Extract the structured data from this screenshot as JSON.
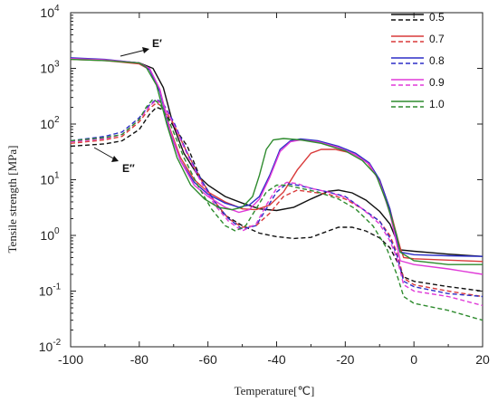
{
  "chart_data": {
    "type": "line",
    "xlabel": "Temperature[℃]",
    "ylabel": "Tensile strength [MPa]",
    "xlim": [
      -100,
      20
    ],
    "ylim": [
      0.01,
      10000
    ],
    "yscale": "log",
    "xticks": [
      "-100",
      "-80",
      "-60",
      "-40",
      "-20",
      "0",
      "20"
    ],
    "yticks": [
      {
        "base": "10",
        "exp": "-2"
      },
      {
        "base": "10",
        "exp": "-1"
      },
      {
        "base": "10",
        "exp": "0"
      },
      {
        "base": "10",
        "exp": "1"
      },
      {
        "base": "10",
        "exp": "2"
      },
      {
        "base": "10",
        "exp": "3"
      },
      {
        "base": "10",
        "exp": "4"
      }
    ],
    "legend_position": "top-right",
    "annotations": {
      "storage": "E′",
      "loss": "E″"
    },
    "series": [
      {
        "name": "0.5",
        "color": "#111111",
        "storage": [
          [
            -100,
            1500
          ],
          [
            -90,
            1400
          ],
          [
            -80,
            1250
          ],
          [
            -76,
            1000
          ],
          [
            -73,
            450
          ],
          [
            -70,
            90
          ],
          [
            -67,
            30
          ],
          [
            -63,
            12
          ],
          [
            -60,
            8
          ],
          [
            -55,
            5
          ],
          [
            -50,
            3.8
          ],
          [
            -45,
            3
          ],
          [
            -40,
            2.8
          ],
          [
            -35,
            3.2
          ],
          [
            -30,
            4.5
          ],
          [
            -25,
            6.2
          ],
          [
            -22,
            6.5
          ],
          [
            -18,
            5.8
          ],
          [
            -14,
            4.3
          ],
          [
            -10,
            2.7
          ],
          [
            -7,
            1.6
          ],
          [
            -5,
            0.8
          ],
          [
            -4,
            0.55
          ],
          [
            0,
            0.52
          ],
          [
            10,
            0.46
          ],
          [
            20,
            0.42
          ]
        ],
        "loss": [
          [
            -100,
            40
          ],
          [
            -90,
            44
          ],
          [
            -85,
            50
          ],
          [
            -80,
            80
          ],
          [
            -77,
            150
          ],
          [
            -75,
            200
          ],
          [
            -73,
            180
          ],
          [
            -70,
            90
          ],
          [
            -66,
            40
          ],
          [
            -62,
            10
          ],
          [
            -58,
            4
          ],
          [
            -55,
            2.3
          ],
          [
            -50,
            1.5
          ],
          [
            -45,
            1.1
          ],
          [
            -40,
            0.95
          ],
          [
            -35,
            0.88
          ],
          [
            -30,
            0.92
          ],
          [
            -25,
            1.2
          ],
          [
            -22,
            1.4
          ],
          [
            -18,
            1.4
          ],
          [
            -14,
            1.2
          ],
          [
            -10,
            0.9
          ],
          [
            -7,
            0.6
          ],
          [
            -5,
            0.35
          ],
          [
            -3,
            0.18
          ],
          [
            0,
            0.15
          ],
          [
            10,
            0.12
          ],
          [
            20,
            0.1
          ]
        ]
      },
      {
        "name": "0.7",
        "color": "#d93a3a",
        "storage": [
          [
            -100,
            1450
          ],
          [
            -90,
            1380
          ],
          [
            -80,
            1200
          ],
          [
            -77,
            950
          ],
          [
            -74,
            400
          ],
          [
            -71,
            80
          ],
          [
            -68,
            25
          ],
          [
            -64,
            10
          ],
          [
            -60,
            6
          ],
          [
            -55,
            4
          ],
          [
            -50,
            3
          ],
          [
            -46,
            2.9
          ],
          [
            -42,
            3.5
          ],
          [
            -38,
            6
          ],
          [
            -34,
            15
          ],
          [
            -30,
            30
          ],
          [
            -27,
            35
          ],
          [
            -23,
            35
          ],
          [
            -18,
            30
          ],
          [
            -14,
            22
          ],
          [
            -10,
            10
          ],
          [
            -7,
            3
          ],
          [
            -5,
            1
          ],
          [
            -4,
            0.6
          ],
          [
            -3,
            0.4
          ],
          [
            0,
            0.38
          ],
          [
            10,
            0.36
          ],
          [
            20,
            0.34
          ]
        ],
        "loss": [
          [
            -100,
            45
          ],
          [
            -90,
            52
          ],
          [
            -85,
            60
          ],
          [
            -80,
            110
          ],
          [
            -77,
            190
          ],
          [
            -75,
            240
          ],
          [
            -73,
            200
          ],
          [
            -70,
            100
          ],
          [
            -66,
            30
          ],
          [
            -62,
            10
          ],
          [
            -58,
            4
          ],
          [
            -54,
            2
          ],
          [
            -50,
            1.4
          ],
          [
            -46,
            1.5
          ],
          [
            -42,
            2.5
          ],
          [
            -38,
            5
          ],
          [
            -34,
            6.5
          ],
          [
            -30,
            6
          ],
          [
            -25,
            5.5
          ],
          [
            -20,
            4.5
          ],
          [
            -15,
            3
          ],
          [
            -10,
            1.8
          ],
          [
            -7,
            1
          ],
          [
            -5,
            0.5
          ],
          [
            -3,
            0.17
          ],
          [
            0,
            0.13
          ],
          [
            10,
            0.1
          ],
          [
            20,
            0.08
          ]
        ]
      },
      {
        "name": "0.8",
        "color": "#2d2fc7",
        "storage": [
          [
            -100,
            1550
          ],
          [
            -90,
            1450
          ],
          [
            -80,
            1250
          ],
          [
            -77,
            950
          ],
          [
            -74,
            380
          ],
          [
            -71,
            70
          ],
          [
            -68,
            22
          ],
          [
            -64,
            9
          ],
          [
            -60,
            5.5
          ],
          [
            -55,
            3.8
          ],
          [
            -51,
            3.2
          ],
          [
            -48,
            3.5
          ],
          [
            -45,
            5
          ],
          [
            -42,
            12
          ],
          [
            -39,
            35
          ],
          [
            -36,
            50
          ],
          [
            -33,
            54
          ],
          [
            -28,
            50
          ],
          [
            -22,
            40
          ],
          [
            -17,
            30
          ],
          [
            -13,
            20
          ],
          [
            -10,
            10
          ],
          [
            -7,
            3
          ],
          [
            -5,
            0.8
          ],
          [
            -4,
            0.5
          ],
          [
            0,
            0.45
          ],
          [
            10,
            0.43
          ],
          [
            20,
            0.42
          ]
        ],
        "loss": [
          [
            -100,
            50
          ],
          [
            -90,
            60
          ],
          [
            -85,
            72
          ],
          [
            -80,
            130
          ],
          [
            -77,
            220
          ],
          [
            -75,
            280
          ],
          [
            -73,
            230
          ],
          [
            -70,
            110
          ],
          [
            -66,
            30
          ],
          [
            -62,
            10
          ],
          [
            -58,
            4
          ],
          [
            -54,
            2
          ],
          [
            -50,
            1.3
          ],
          [
            -46,
            1.5
          ],
          [
            -43,
            3
          ],
          [
            -40,
            6
          ],
          [
            -37,
            8.5
          ],
          [
            -34,
            8
          ],
          [
            -30,
            7
          ],
          [
            -25,
            6
          ],
          [
            -20,
            5
          ],
          [
            -15,
            3
          ],
          [
            -10,
            1.8
          ],
          [
            -7,
            0.9
          ],
          [
            -5,
            0.45
          ],
          [
            -3,
            0.15
          ],
          [
            0,
            0.12
          ],
          [
            10,
            0.09
          ],
          [
            20,
            0.08
          ]
        ]
      },
      {
        "name": "0.9",
        "color": "#e03ad8",
        "storage": [
          [
            -100,
            1500
          ],
          [
            -90,
            1420
          ],
          [
            -80,
            1250
          ],
          [
            -77,
            1000
          ],
          [
            -74,
            420
          ],
          [
            -71,
            75
          ],
          [
            -68,
            22
          ],
          [
            -64,
            8
          ],
          [
            -60,
            5
          ],
          [
            -55,
            3.2
          ],
          [
            -51,
            2.6
          ],
          [
            -48,
            2.9
          ],
          [
            -45,
            4.5
          ],
          [
            -42,
            11
          ],
          [
            -39,
            32
          ],
          [
            -36,
            48
          ],
          [
            -33,
            52
          ],
          [
            -28,
            48
          ],
          [
            -22,
            38
          ],
          [
            -17,
            28
          ],
          [
            -13,
            19
          ],
          [
            -10,
            9
          ],
          [
            -7,
            2.5
          ],
          [
            -5,
            0.7
          ],
          [
            -4,
            0.35
          ],
          [
            0,
            0.3
          ],
          [
            10,
            0.25
          ],
          [
            20,
            0.2
          ]
        ],
        "loss": [
          [
            -100,
            48
          ],
          [
            -90,
            55
          ],
          [
            -85,
            65
          ],
          [
            -80,
            120
          ],
          [
            -77,
            210
          ],
          [
            -75,
            270
          ],
          [
            -73,
            220
          ],
          [
            -70,
            100
          ],
          [
            -66,
            28
          ],
          [
            -62,
            9
          ],
          [
            -58,
            3.5
          ],
          [
            -54,
            1.8
          ],
          [
            -50,
            1.2
          ],
          [
            -46,
            1.6
          ],
          [
            -43,
            3.5
          ],
          [
            -40,
            7
          ],
          [
            -37,
            9
          ],
          [
            -34,
            8.5
          ],
          [
            -30,
            7
          ],
          [
            -25,
            6
          ],
          [
            -20,
            4.8
          ],
          [
            -15,
            3
          ],
          [
            -10,
            1.6
          ],
          [
            -7,
            0.8
          ],
          [
            -5,
            0.4
          ],
          [
            -3,
            0.13
          ],
          [
            0,
            0.1
          ],
          [
            10,
            0.08
          ],
          [
            20,
            0.055
          ]
        ]
      },
      {
        "name": "1.0",
        "color": "#2e8b2e",
        "storage": [
          [
            -100,
            1450
          ],
          [
            -90,
            1380
          ],
          [
            -80,
            1250
          ],
          [
            -78,
            1050
          ],
          [
            -75,
            500
          ],
          [
            -72,
            100
          ],
          [
            -69,
            25
          ],
          [
            -65,
            8
          ],
          [
            -61,
            4.5
          ],
          [
            -57,
            3.2
          ],
          [
            -53,
            2.9
          ],
          [
            -50,
            3.2
          ],
          [
            -47,
            5
          ],
          [
            -45,
            12
          ],
          [
            -43,
            35
          ],
          [
            -41,
            52
          ],
          [
            -38,
            55
          ],
          [
            -33,
            52
          ],
          [
            -27,
            45
          ],
          [
            -20,
            33
          ],
          [
            -15,
            22
          ],
          [
            -11,
            12
          ],
          [
            -8,
            4
          ],
          [
            -5,
            1
          ],
          [
            -4,
            0.5
          ],
          [
            0,
            0.35
          ],
          [
            10,
            0.3
          ],
          [
            20,
            0.3
          ]
        ],
        "loss": [
          [
            -100,
            50
          ],
          [
            -90,
            57
          ],
          [
            -85,
            65
          ],
          [
            -80,
            120
          ],
          [
            -78,
            200
          ],
          [
            -76,
            280
          ],
          [
            -74,
            230
          ],
          [
            -71,
            100
          ],
          [
            -67,
            25
          ],
          [
            -63,
            8
          ],
          [
            -59,
            3
          ],
          [
            -55,
            1.5
          ],
          [
            -52,
            1.2
          ],
          [
            -49,
            1.5
          ],
          [
            -46,
            3
          ],
          [
            -43,
            6
          ],
          [
            -40,
            8
          ],
          [
            -37,
            8
          ],
          [
            -33,
            7
          ],
          [
            -28,
            6
          ],
          [
            -22,
            4.5
          ],
          [
            -17,
            3
          ],
          [
            -12,
            1.5
          ],
          [
            -8,
            0.6
          ],
          [
            -5,
            0.2
          ],
          [
            -3,
            0.08
          ],
          [
            0,
            0.06
          ],
          [
            10,
            0.045
          ],
          [
            20,
            0.03
          ]
        ]
      }
    ]
  }
}
